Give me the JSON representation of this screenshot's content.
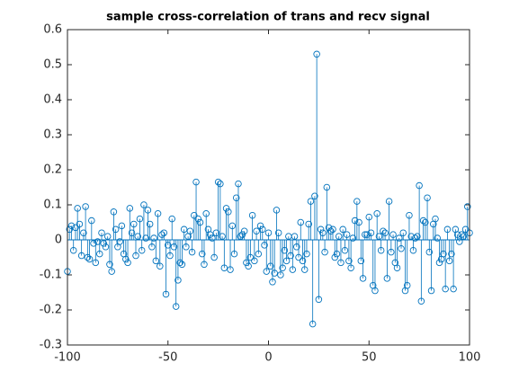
{
  "chart_data": {
    "type": "stem",
    "title": "sample cross-correlation of trans and recv signal",
    "xlim": [
      -100,
      100
    ],
    "xticks": [
      -100,
      -50,
      0,
      50,
      100
    ],
    "ylim": [
      -0.3,
      0.6
    ],
    "yticks": [
      -0.3,
      -0.2,
      -0.1,
      0,
      0.1,
      0.2,
      0.3,
      0.4,
      0.5,
      0.6
    ],
    "color": "#0072bd",
    "x": [
      -100,
      -99,
      -98,
      -97,
      -96,
      -95,
      -94,
      -93,
      -92,
      -91,
      -90,
      -89,
      -88,
      -87,
      -86,
      -85,
      -84,
      -83,
      -82,
      -81,
      -80,
      -79,
      -78,
      -77,
      -76,
      -75,
      -74,
      -73,
      -72,
      -71,
      -70,
      -69,
      -68,
      -67,
      -66,
      -65,
      -64,
      -63,
      -62,
      -61,
      -60,
      -59,
      -58,
      -57,
      -56,
      -55,
      -54,
      -53,
      -52,
      -51,
      -50,
      -49,
      -48,
      -47,
      -46,
      -45,
      -44,
      -43,
      -42,
      -41,
      -40,
      -39,
      -38,
      -37,
      -36,
      -35,
      -34,
      -33,
      -32,
      -31,
      -30,
      -29,
      -28,
      -27,
      -26,
      -25,
      -24,
      -23,
      -22,
      -21,
      -20,
      -19,
      -18,
      -17,
      -16,
      -15,
      -14,
      -13,
      -12,
      -11,
      -10,
      -9,
      -8,
      -7,
      -6,
      -5,
      -4,
      -3,
      -2,
      -1,
      0,
      1,
      2,
      3,
      4,
      5,
      6,
      7,
      8,
      9,
      10,
      11,
      12,
      13,
      14,
      15,
      16,
      17,
      18,
      19,
      20,
      21,
      22,
      23,
      24,
      25,
      26,
      27,
      28,
      29,
      30,
      31,
      32,
      33,
      34,
      35,
      36,
      37,
      38,
      39,
      40,
      41,
      42,
      43,
      44,
      45,
      46,
      47,
      48,
      49,
      50,
      51,
      52,
      53,
      54,
      55,
      56,
      57,
      58,
      59,
      60,
      61,
      62,
      63,
      64,
      65,
      66,
      67,
      68,
      69,
      70,
      71,
      72,
      73,
      74,
      75,
      76,
      77,
      78,
      79,
      80,
      81,
      82,
      83,
      84,
      85,
      86,
      87,
      88,
      89,
      90,
      91,
      92,
      93,
      94,
      95,
      96,
      97,
      98,
      99,
      100
    ],
    "values": [
      -0.09,
      0.03,
      0.04,
      -0.03,
      0.035,
      0.09,
      0.045,
      -0.045,
      0.02,
      0.095,
      -0.05,
      -0.055,
      0.055,
      -0.01,
      -0.065,
      -0.005,
      -0.04,
      0.02,
      -0.01,
      -0.02,
      0.01,
      -0.07,
      -0.09,
      0.08,
      0.03,
      -0.02,
      -0.005,
      0.04,
      -0.04,
      -0.055,
      -0.065,
      0.09,
      0.02,
      0.045,
      -0.045,
      0.01,
      0.06,
      -0.03,
      0.1,
      0.005,
      0.085,
      0.045,
      -0.02,
      0.005,
      -0.06,
      0.075,
      -0.075,
      0.015,
      0.02,
      -0.155,
      -0.015,
      -0.045,
      0.06,
      -0.02,
      -0.19,
      -0.115,
      -0.065,
      -0.07,
      0.03,
      -0.02,
      0.01,
      0.025,
      -0.035,
      0.07,
      0.165,
      0.06,
      0.05,
      -0.04,
      -0.07,
      0.075,
      0.03,
      0.015,
      0.005,
      -0.05,
      0.02,
      0.165,
      0.16,
      0.01,
      -0.08,
      0.09,
      0.08,
      -0.085,
      0.04,
      -0.04,
      0.12,
      0.16,
      0.01,
      0.015,
      0.025,
      -0.065,
      -0.075,
      -0.05,
      0.07,
      -0.06,
      0.025,
      -0.04,
      0.04,
      0.03,
      -0.015,
      -0.09,
      0.02,
      -0.075,
      -0.12,
      -0.095,
      0.085,
      0.02,
      -0.1,
      -0.08,
      -0.03,
      -0.06,
      0.01,
      -0.045,
      -0.085,
      0.01,
      -0.02,
      -0.05,
      0.05,
      -0.06,
      -0.085,
      -0.04,
      0.045,
      0.11,
      -0.24,
      0.125,
      0.53,
      -0.17,
      0.03,
      0.02,
      -0.035,
      0.15,
      0.035,
      0.025,
      0.03,
      -0.05,
      -0.04,
      0.01,
      -0.065,
      0.03,
      -0.03,
      0.015,
      -0.06,
      -0.08,
      0.005,
      0.055,
      0.11,
      0.05,
      -0.06,
      -0.11,
      0.015,
      0.015,
      0.065,
      0.02,
      -0.13,
      -0.145,
      0.075,
      0.01,
      -0.03,
      0.025,
      0.02,
      -0.11,
      0.11,
      -0.035,
      0.015,
      -0.065,
      -0.08,
      0.005,
      -0.025,
      0.02,
      -0.145,
      -0.13,
      0.07,
      0.01,
      -0.03,
      0.005,
      0.01,
      0.155,
      -0.175,
      0.055,
      0.05,
      0.12,
      -0.035,
      -0.145,
      0.045,
      0.06,
      0.005,
      -0.065,
      -0.055,
      -0.04,
      -0.14,
      0.03,
      -0.06,
      -0.04,
      -0.14,
      0.03,
      0.015,
      -0.005,
      0.015,
      0.01,
      0.03,
      0.095,
      0.02
    ]
  }
}
